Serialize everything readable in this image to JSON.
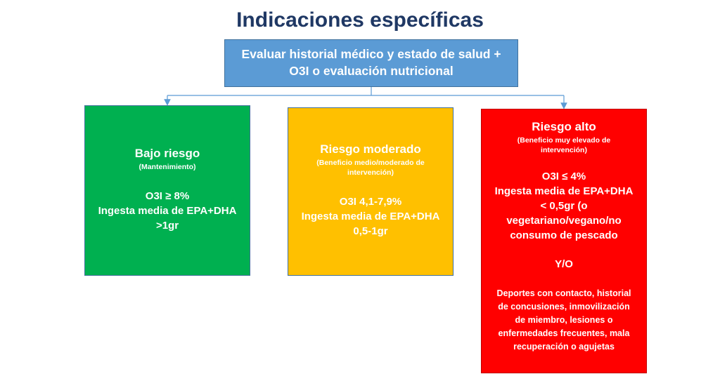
{
  "title": "Indicaciones específicas",
  "top_box": {
    "line1": "Evaluar historial médico y estado de salud +",
    "line2": "O3I o evaluación nutricional"
  },
  "boxes": {
    "low": {
      "heading": "Bajo riesgo",
      "sub": "(Mantenimiento)",
      "lines": [
        "O3I ≥ 8%",
        "Ingesta media de EPA+DHA",
        ">1gr"
      ],
      "color": "#00b050"
    },
    "moderate": {
      "heading": "Riesgo moderado",
      "sub_lines": [
        "(Beneficio medio/moderado de",
        "intervención)"
      ],
      "lines": [
        "O3I 4,1-7,9%",
        "Ingesta media de EPA+DHA",
        "0,5-1gr"
      ],
      "color": "#ffc000"
    },
    "high": {
      "heading": "Riesgo alto",
      "sub_lines": [
        "(Beneficio muy elevado de",
        "intervención)"
      ],
      "lines": [
        "O3I ≤ 4%",
        "Ingesta media de EPA+DHA",
        "< 0,5gr (o",
        "vegetariano/vegano/no",
        "consumo de pescado"
      ],
      "connector": "Y/O",
      "extra_lines": [
        "Deportes con contacto, historial",
        "de concusiones, inmovilización",
        "de miembro, lesiones o",
        "enfermedades frecuentes, mala",
        "recuperación o agujetas"
      ],
      "color": "#ff0000"
    }
  },
  "colors": {
    "title": "#1f3864",
    "top_box": "#5b9bd5",
    "connector_line": "#5b9bd5"
  }
}
